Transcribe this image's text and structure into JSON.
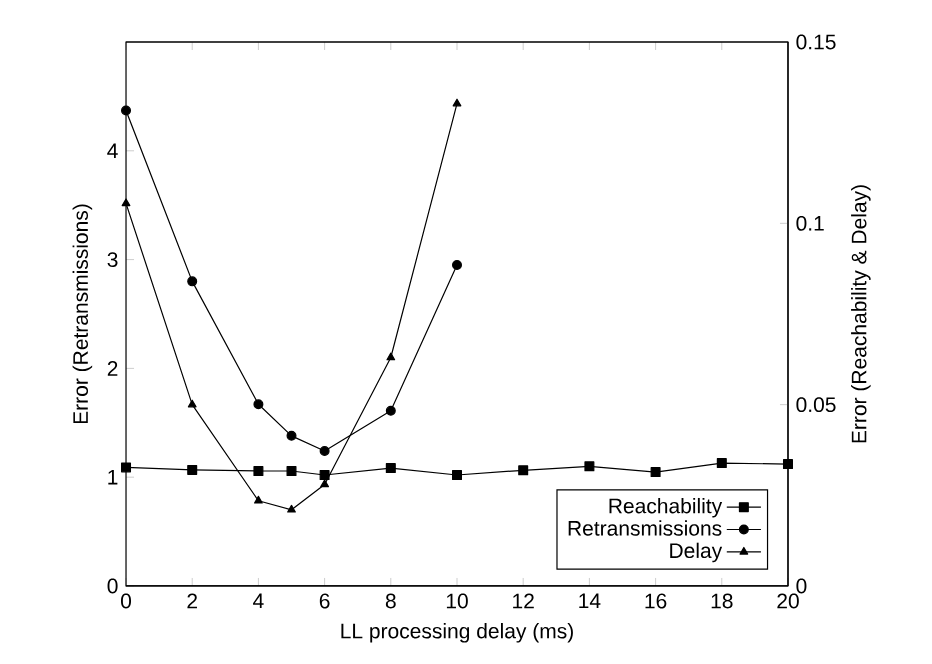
{
  "chart_data": {
    "type": "line",
    "xlabel": "LL processing delay (ms)",
    "ylabel": "Error (Retransmissions)",
    "y2label": "Error (Reachability & Delay)",
    "xlim": [
      0,
      20
    ],
    "xticks": [
      0,
      2,
      4,
      6,
      8,
      10,
      12,
      14,
      16,
      18,
      20
    ],
    "ylim": [
      0,
      5
    ],
    "yticks": [
      0,
      1,
      2,
      3,
      4
    ],
    "y2lim": [
      0,
      0.15
    ],
    "y2ticks": [
      0,
      0.05,
      0.1,
      0.15
    ],
    "legend": "bottom right",
    "series": [
      {
        "name": "Reachability",
        "color": "#000000",
        "marker": "square",
        "axis": "y2",
        "x": [
          0,
          2,
          4,
          5,
          6,
          8,
          10,
          12,
          14,
          16,
          18,
          20
        ],
        "values": [
          0.0327,
          0.032,
          0.0317,
          0.0317,
          0.0306,
          0.0325,
          0.0306,
          0.0319,
          0.033,
          0.0314,
          0.0339,
          0.0336
        ]
      },
      {
        "name": "Retransmissions",
        "color": "#000000",
        "marker": "circle",
        "x": [
          0,
          2,
          4,
          5,
          6,
          8,
          10
        ],
        "values": [
          4.37,
          2.8,
          1.67,
          1.38,
          1.24,
          1.61,
          2.95
        ]
      },
      {
        "name": "Delay",
        "color": "#000000",
        "marker": "triangle",
        "axis": "y2",
        "x": [
          0,
          2,
          4,
          5,
          6,
          8,
          10
        ],
        "values": [
          0.1055,
          0.05,
          0.0235,
          0.021,
          0.028,
          0.063,
          0.133
        ]
      }
    ]
  }
}
